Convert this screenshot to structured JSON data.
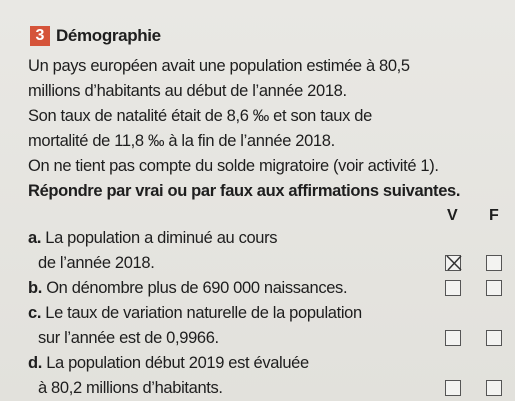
{
  "header": {
    "number": "3",
    "title": "Démographie"
  },
  "statement": {
    "lines": [
      "Un pays européen avait une population estimée à 80,5",
      "millions d’habitants au début de l’année 2018.",
      "Son taux de natalité était de 8,6 ‰ et son taux de",
      "mortalité de 11,8 ‰ à la fin de l’année 2018.",
      "On ne tient pas compte du solde migratoire (voir activité 1)."
    ]
  },
  "instruction": "Répondre par vrai ou par faux aux affirmations suivantes.",
  "columns": [
    "V",
    "F"
  ],
  "items": [
    {
      "letter": "a.",
      "lines": [
        "La population a diminué au cours",
        "de l’année 2018."
      ]
    },
    {
      "letter": "b.",
      "lines": [
        "On dénombre plus de 690 000 naissances."
      ]
    },
    {
      "letter": "c.",
      "lines": [
        "Le taux de variation naturelle de la population",
        "sur l’année est de 0,9966."
      ]
    },
    {
      "letter": "d.",
      "lines": [
        "La population début 2019 est évaluée",
        "à 80,2 millions d’habitants."
      ]
    }
  ]
}
